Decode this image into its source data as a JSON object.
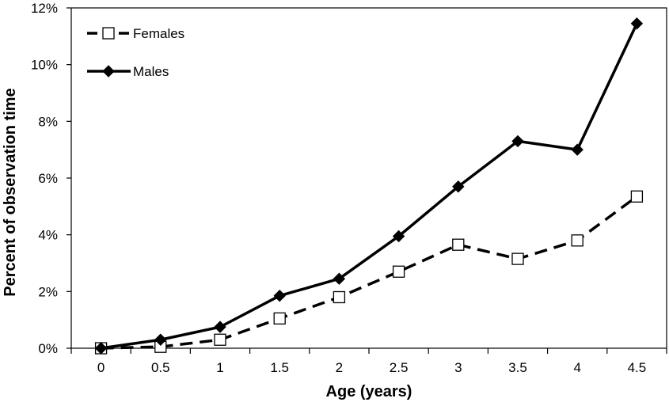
{
  "chart_data": {
    "type": "line",
    "xlabel": "Age (years)",
    "ylabel": "Percent of observation time",
    "x": [
      0,
      0.5,
      1,
      1.5,
      2,
      2.5,
      3,
      3.5,
      4,
      4.5
    ],
    "x_tick_labels": [
      "0",
      "0.5",
      "1",
      "1.5",
      "2",
      "2.5",
      "3",
      "3.5",
      "4",
      "4.5"
    ],
    "y_tick_values": [
      0,
      2,
      4,
      6,
      8,
      10,
      12
    ],
    "y_tick_labels": [
      "0%",
      "2%",
      "4%",
      "6%",
      "8%",
      "10%",
      "12%"
    ],
    "ylim": [
      0,
      12
    ],
    "grid": false,
    "legend_position": "top-left",
    "series": [
      {
        "name": "Females",
        "style": "dashed",
        "marker": "open-square",
        "color": "#000000",
        "values": [
          0.0,
          0.05,
          0.3,
          1.05,
          1.8,
          2.7,
          3.65,
          3.15,
          3.8,
          5.35
        ]
      },
      {
        "name": "Males",
        "style": "solid",
        "marker": "filled-diamond",
        "color": "#000000",
        "values": [
          0.0,
          0.3,
          0.75,
          1.85,
          2.45,
          3.95,
          5.7,
          7.3,
          7.0,
          11.45
        ]
      }
    ]
  }
}
